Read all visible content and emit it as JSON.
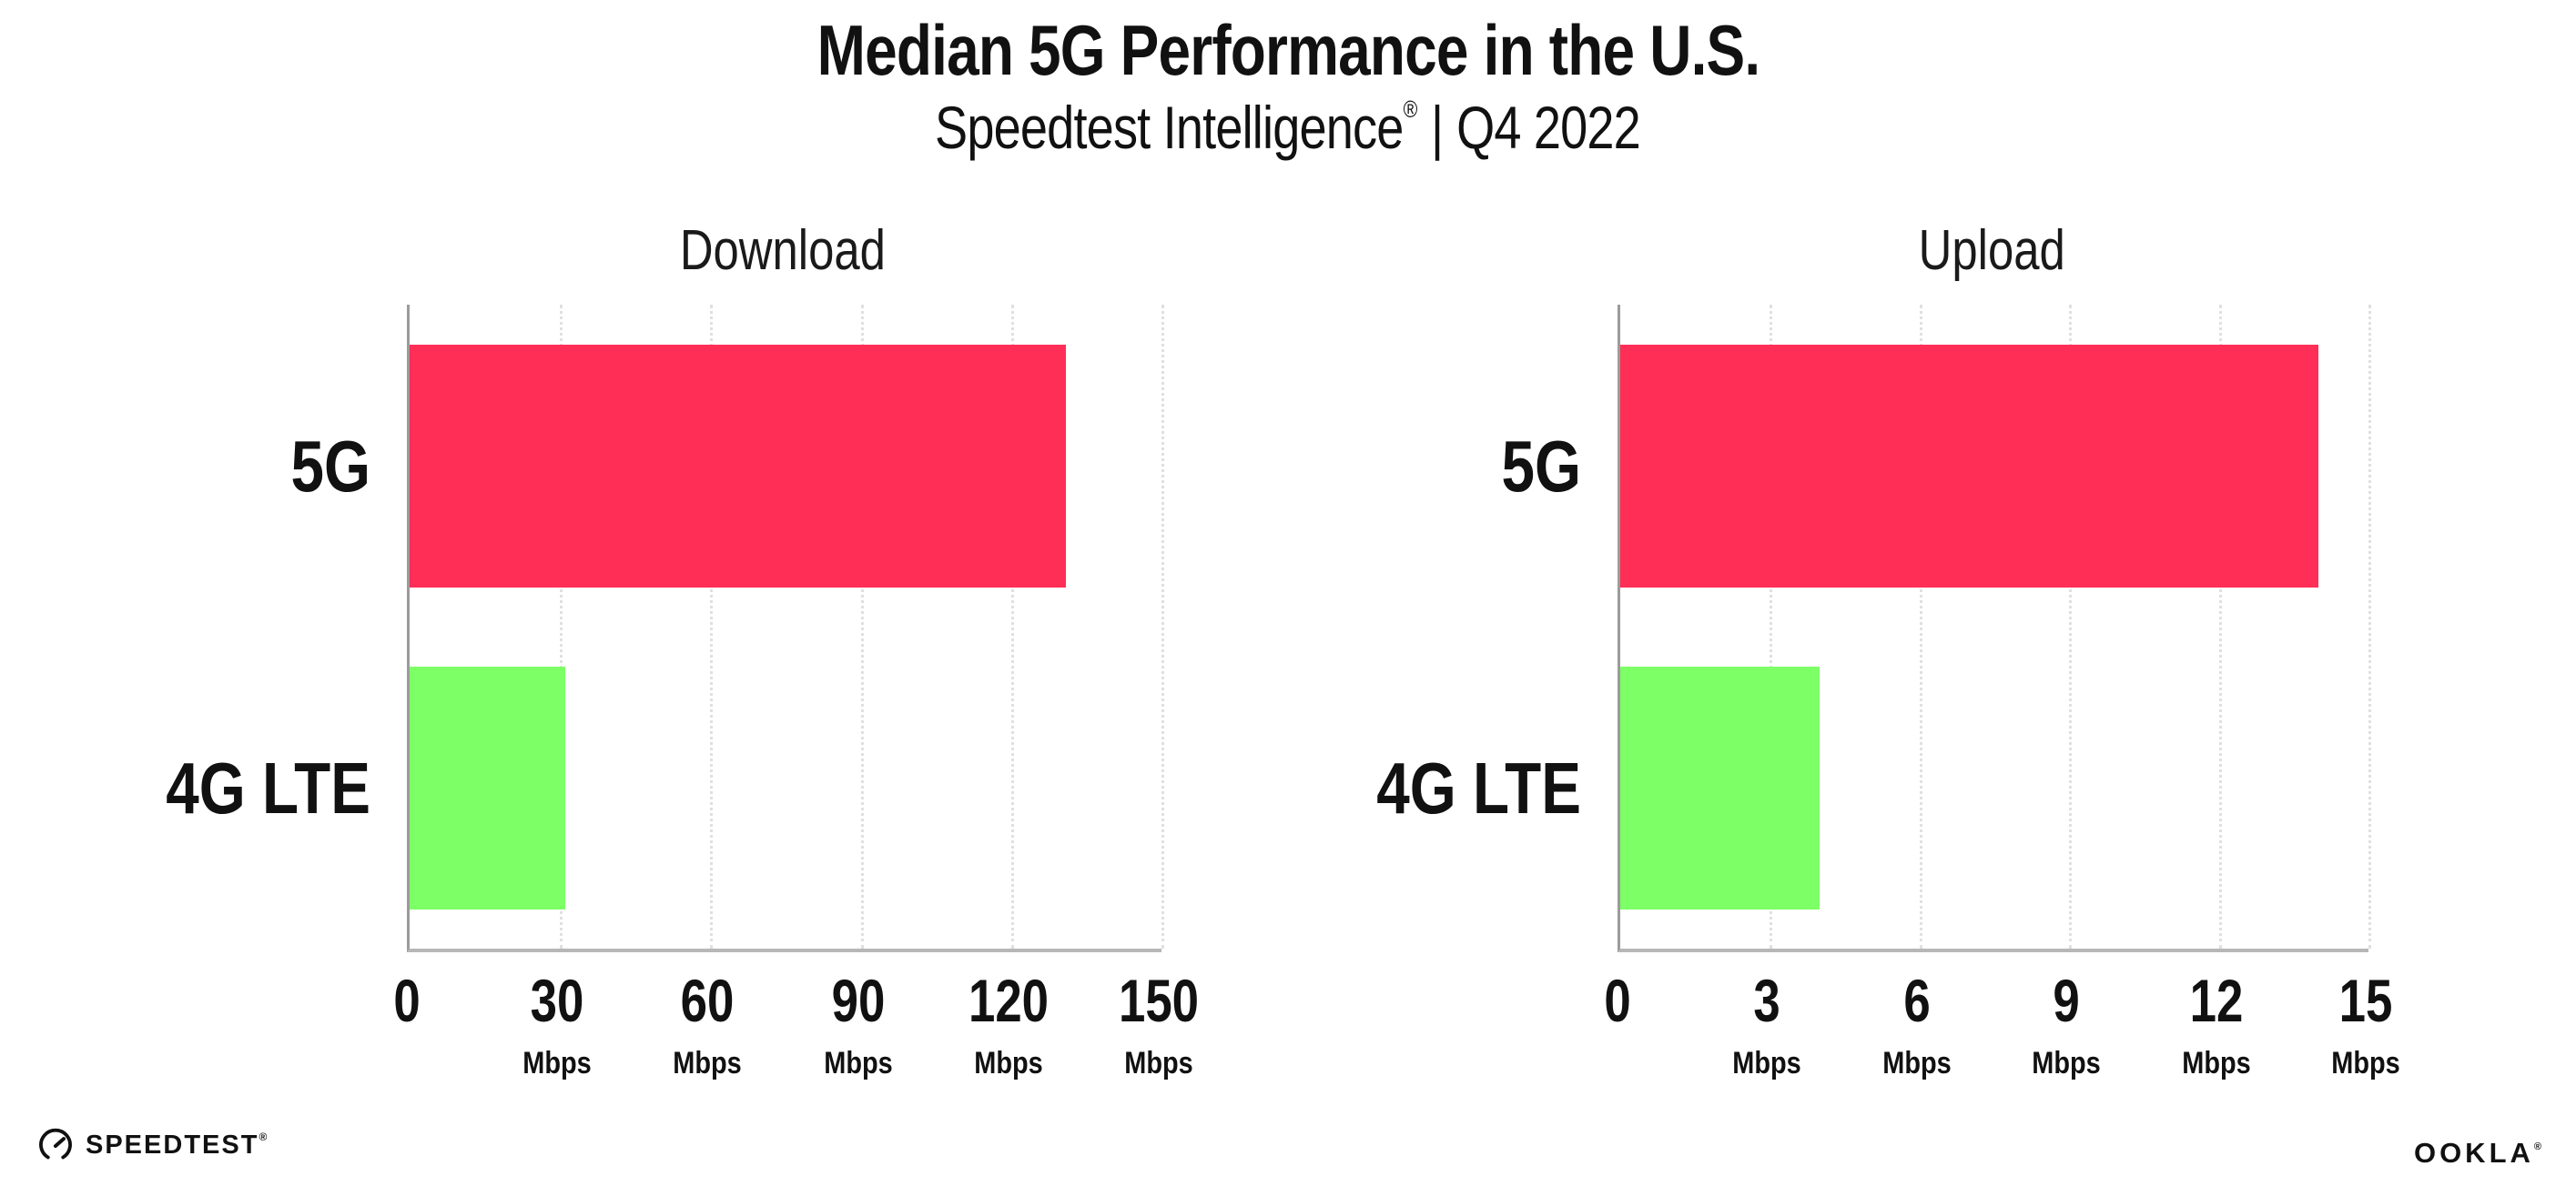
{
  "header": {
    "title": "Median 5G Performance in the U.S.",
    "subtitle_brand": "Speedtest Intelligence",
    "subtitle_reg": "®",
    "separator": "|",
    "subtitle_period": "Q4 2022"
  },
  "chart_data": [
    {
      "type": "bar",
      "orientation": "horizontal",
      "title": "Download",
      "categories": [
        "5G",
        "4G LTE"
      ],
      "values": [
        131,
        31
      ],
      "unit": "Mbps",
      "xlim": [
        0,
        150
      ],
      "xticks": [
        0,
        30,
        60,
        90,
        120,
        150
      ],
      "tick_unit_label": "Mbps",
      "bar_colors": [
        "#FF2E57",
        "#7DFF66"
      ],
      "grid": "dotted-vertical",
      "legend": "none"
    },
    {
      "type": "bar",
      "orientation": "horizontal",
      "title": "Upload",
      "categories": [
        "5G",
        "4G LTE"
      ],
      "values": [
        14,
        4
      ],
      "unit": "Mbps",
      "xlim": [
        0,
        15
      ],
      "xticks": [
        0,
        3,
        6,
        9,
        12,
        15
      ],
      "tick_unit_label": "Mbps",
      "bar_colors": [
        "#FF2E57",
        "#7DFF66"
      ],
      "grid": "dotted-vertical",
      "legend": "none"
    }
  ],
  "footer": {
    "speedtest_logo_text": "SPEEDTEST",
    "speedtest_reg": "®",
    "ookla_logo_text": "OOKLA",
    "ookla_reg": "®"
  },
  "colors": {
    "bar_5g": "#FF2E57",
    "bar_4g_lte": "#7DFF66",
    "axis_y": "#9B9B9B",
    "axis_x": "#B7B7B7",
    "gridline": "#E0E0E0",
    "text": "#111111",
    "background": "#FFFFFF"
  }
}
